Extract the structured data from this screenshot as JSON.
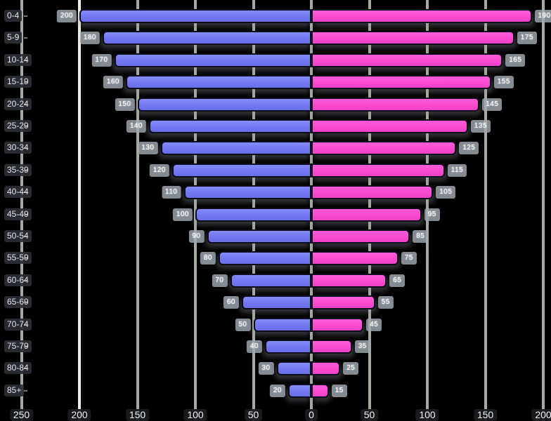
{
  "chart_data": {
    "type": "bar",
    "variant": "population_pyramid",
    "orientation": "horizontal",
    "title": "",
    "background": "#000000",
    "grid": {
      "vertical": true,
      "color": "#a4aa9e",
      "highlight_tick_value": -200,
      "highlight_color": "#ecede8"
    },
    "categories": [
      "0-4",
      "5-9",
      "10-14",
      "15-19",
      "20-24",
      "25-29",
      "30-34",
      "35-39",
      "40-44",
      "45-49",
      "50-54",
      "55-59",
      "60-64",
      "65-69",
      "70-74",
      "75-79",
      "80-84",
      "85+"
    ],
    "series": [
      {
        "name": "left",
        "side": "left",
        "color": "#7277f1",
        "values": [
          200,
          180,
          170,
          160,
          150,
          140,
          130,
          120,
          110,
          100,
          90,
          80,
          70,
          60,
          50,
          40,
          30,
          20
        ]
      },
      {
        "name": "right",
        "side": "right",
        "color": "#fa4ad1",
        "values": [
          190,
          175,
          165,
          155,
          145,
          135,
          125,
          115,
          105,
          95,
          85,
          75,
          65,
          55,
          45,
          35,
          25,
          15
        ]
      }
    ],
    "value_labels_visible": true,
    "x_axis": {
      "tick_values": [
        -250,
        -200,
        -150,
        -100,
        -50,
        0,
        50,
        100,
        150,
        200
      ],
      "tick_labels": [
        "250",
        "200",
        "150",
        "100",
        "50",
        "0",
        "50",
        "100",
        "150",
        "200"
      ]
    },
    "y_axis": {
      "position": "left",
      "label": ""
    }
  }
}
